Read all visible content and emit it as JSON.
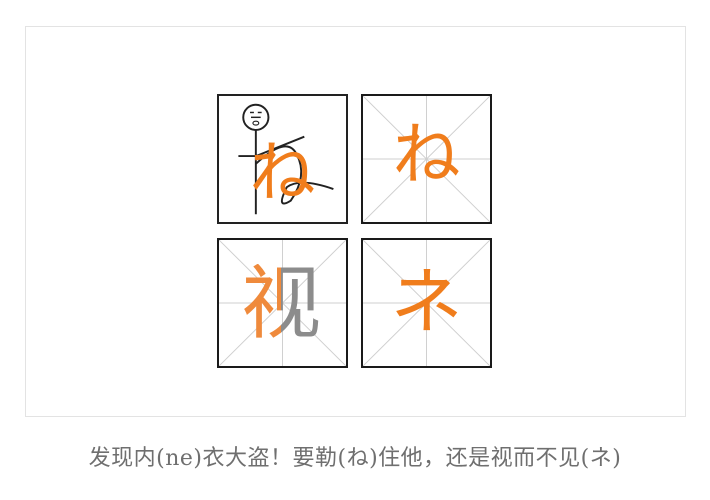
{
  "cells": {
    "top_left": {
      "kana": "ね"
    },
    "top_right": {
      "kana": "ね"
    },
    "bottom_left": {
      "kanji": "视"
    },
    "bottom_right": {
      "kana": "ネ"
    }
  },
  "caption": "发现内(ne)衣大盗！要勒(ね)住他，还是视而不见(ネ)",
  "colors": {
    "accent": "#f07d1c",
    "grid_line": "#c8c8c8",
    "border": "#1a1a1a",
    "caption": "#6f6f6f"
  }
}
